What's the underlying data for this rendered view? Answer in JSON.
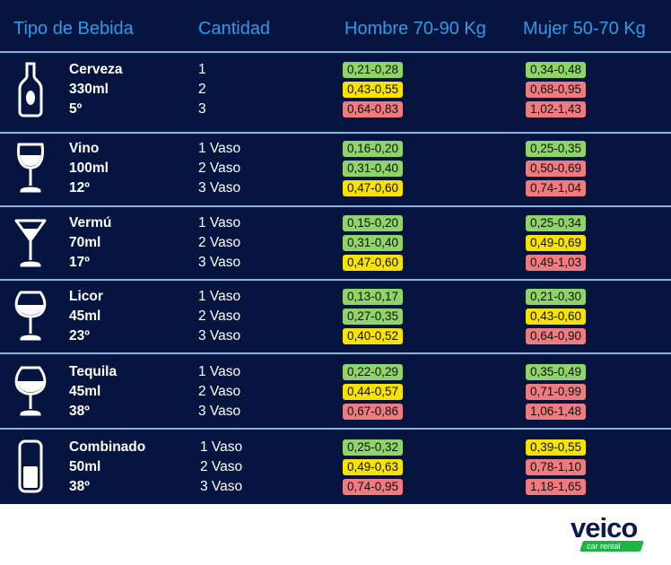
{
  "headers": {
    "drink": "Tipo de Bebida",
    "quantity": "Cantidad",
    "men": "Hombre 70-90 Kg",
    "women": "Mujer 50-70 Kg"
  },
  "colors": {
    "panel_bg": "#06153f",
    "header_text": "#2f9be6",
    "separator": "#7eb8e0",
    "level_green": "#8fd468",
    "level_yellow": "#f7e200",
    "level_red": "#ee7b7f",
    "logo_dark": "#0b1b4a",
    "logo_green": "#1db446"
  },
  "drinks": [
    {
      "name": "Cerveza",
      "volume": "330ml",
      "degrees": "5º",
      "icon": "beer-bottle-icon",
      "rows": [
        {
          "qty": "1",
          "men": "0,21-0,28",
          "men_level": "green",
          "women": "0,34-0,48",
          "women_level": "green"
        },
        {
          "qty": "2",
          "men": "0,43-0,55",
          "men_level": "yellow",
          "women": "0,68-0,95",
          "women_level": "red"
        },
        {
          "qty": "3",
          "men": "0,64-0,83",
          "men_level": "red",
          "women": "1,02-1,43",
          "women_level": "red"
        }
      ]
    },
    {
      "name": "Vino",
      "volume": "100ml",
      "degrees": "12º",
      "icon": "wine-glass-icon",
      "rows": [
        {
          "qty": "1 Vaso",
          "men": "0,16-0,20",
          "men_level": "green",
          "women": "0,25-0,35",
          "women_level": "green"
        },
        {
          "qty": "2 Vaso",
          "men": "0,31-0,40",
          "men_level": "green",
          "women": "0,50-0,69",
          "women_level": "red"
        },
        {
          "qty": "3 Vaso",
          "men": "0,47-0,60",
          "men_level": "yellow",
          "women": "0,74-1,04",
          "women_level": "red"
        }
      ]
    },
    {
      "name": "Vermú",
      "volume": "70ml",
      "degrees": "17º",
      "icon": "martini-glass-icon",
      "rows": [
        {
          "qty": "1 Vaso",
          "men": "0,15-0,20",
          "men_level": "green",
          "women": "0,25-0,34",
          "women_level": "green"
        },
        {
          "qty": "2 Vaso",
          "men": "0,31-0,40",
          "men_level": "green",
          "women": "0,49-0,69",
          "women_level": "yellow"
        },
        {
          "qty": "3 Vaso",
          "men": "0,47-0,60",
          "men_level": "yellow",
          "women": "0,49-1,03",
          "women_level": "red"
        }
      ]
    },
    {
      "name": "Licor",
      "volume": "45ml",
      "degrees": "23º",
      "icon": "liqueur-glass-icon",
      "rows": [
        {
          "qty": "1 Vaso",
          "men": "0,13-0,17",
          "men_level": "green",
          "women": "0,21-0,30",
          "women_level": "green"
        },
        {
          "qty": "2 Vaso",
          "men": "0,27-0,35",
          "men_level": "green",
          "women": "0,43-0,60",
          "women_level": "yellow"
        },
        {
          "qty": "3 Vaso",
          "men": "0,40-0,52",
          "men_level": "yellow",
          "women": "0,64-0,90",
          "women_level": "red"
        }
      ]
    },
    {
      "name": "Tequila",
      "volume": "45ml",
      "degrees": "38º",
      "icon": "snifter-glass-icon",
      "rows": [
        {
          "qty": "1 Vaso",
          "men": "0,22-0,29",
          "men_level": "green",
          "women": "0,35-0,49",
          "women_level": "green"
        },
        {
          "qty": "2 Vaso",
          "men": "0,44-0,57",
          "men_level": "yellow",
          "women": "0,71-0,99",
          "women_level": "red"
        },
        {
          "qty": "3 Vaso",
          "men": "0,67-0,86",
          "men_level": "red",
          "women": "1,06-1,48",
          "women_level": "red"
        }
      ]
    },
    {
      "name": "Combinado",
      "volume": "50ml",
      "degrees": "38º",
      "icon": "highball-glass-icon",
      "rows": [
        {
          "qty": "1 Vaso",
          "men": "0,25-0,32",
          "men_level": "green",
          "women": "0,39-0,55",
          "women_level": "yellow"
        },
        {
          "qty": "2 Vaso",
          "men": "0,49-0,63",
          "men_level": "yellow",
          "women": "0,78-1,10",
          "women_level": "red"
        },
        {
          "qty": "3 Vaso",
          "men": "0,74-0,95",
          "men_level": "red",
          "women": "1,18-1,65",
          "women_level": "red"
        }
      ]
    }
  ],
  "logo": {
    "word": "veico",
    "sub": "car rental",
    "icon": "veico-logo-icon"
  }
}
